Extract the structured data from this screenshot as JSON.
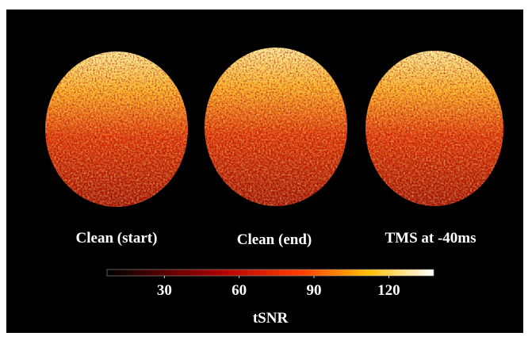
{
  "panels": [
    {
      "label": "Clean (start)"
    },
    {
      "label": "Clean (end)"
    },
    {
      "label": "TMS at -40ms"
    }
  ],
  "colorbar": {
    "label": "tSNR",
    "range": [
      7,
      138
    ],
    "ticks": [
      30,
      60,
      90,
      120
    ]
  }
}
